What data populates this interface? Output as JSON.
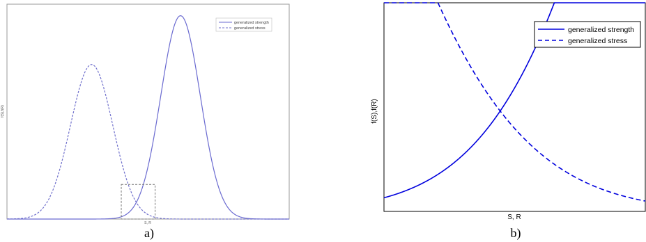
{
  "chart_data": [
    {
      "type": "line",
      "panel_label": "a)",
      "ylabel": "f(S),f(R)",
      "xlabel": "S, R",
      "legend_position": "top-right",
      "grid": false,
      "xlim": [
        0,
        10
      ],
      "ylim": [
        0,
        1.05
      ],
      "series": [
        {
          "name": "generalized strength",
          "style": "solid",
          "color": "#6a6ad0",
          "mean": 6.15,
          "sd": 0.7,
          "peak": 1.0
        },
        {
          "name": "generalized stress",
          "style": "dashed",
          "color": "#7070cc",
          "mean": 3.0,
          "sd": 0.75,
          "peak": 0.76
        }
      ],
      "annotation": {
        "type": "dashed-box",
        "x": [
          4.05,
          5.25
        ],
        "y": [
          0,
          0.17
        ]
      }
    },
    {
      "type": "line",
      "panel_label": "b)",
      "ylabel": "f(S),f(R)",
      "xlabel": "S, R",
      "legend_position": "top-right",
      "grid": false,
      "xlim": [
        4.05,
        5.25
      ],
      "ylim": [
        0,
        0.17
      ],
      "series": [
        {
          "name": "generalized strength",
          "style": "solid",
          "color": "#0000dd",
          "mean": 6.15,
          "sd": 0.7,
          "peak": 1.0
        },
        {
          "name": "generalized stress",
          "style": "dashed",
          "color": "#0000dd",
          "mean": 3.0,
          "sd": 0.75,
          "peak": 0.76
        }
      ]
    }
  ]
}
